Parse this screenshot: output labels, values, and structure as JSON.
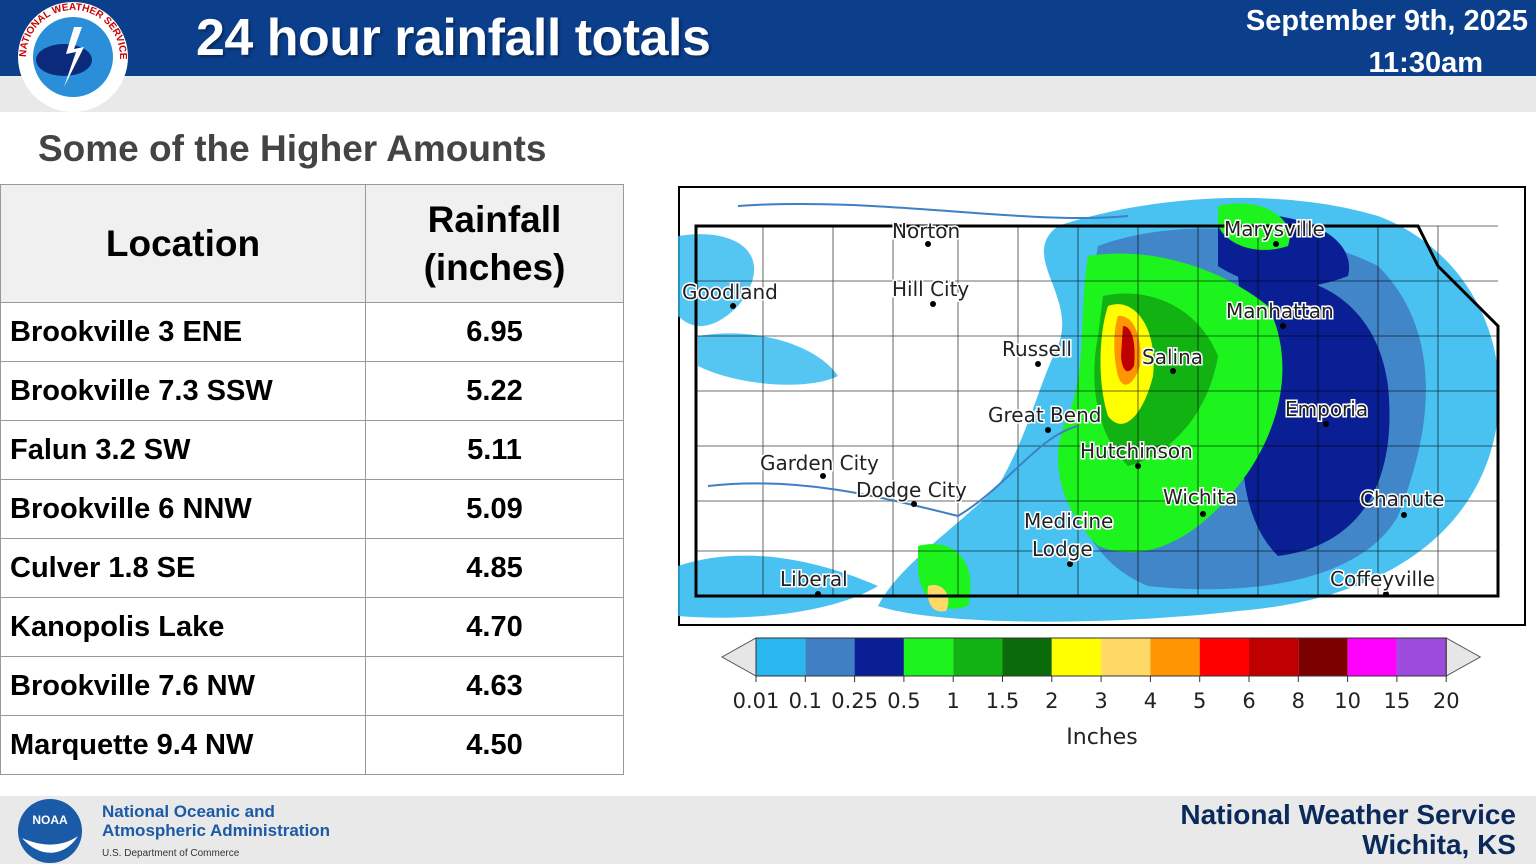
{
  "header": {
    "title": "24 hour rainfall totals",
    "date": "September 9th, 2025",
    "time": "11:30am",
    "logo_ring_text": "NATIONAL WEATHER SERVICE",
    "header_color": "#0b3f8c"
  },
  "subtitle": "Some of the Higher Amounts",
  "table": {
    "headers": [
      "Location",
      "Rainfall",
      "(inches)"
    ],
    "rows": [
      {
        "location": "Brookville 3 ENE",
        "rainfall": "6.95"
      },
      {
        "location": "Brookville 7.3 SSW",
        "rainfall": "5.22"
      },
      {
        "location": "Falun 3.2 SW",
        "rainfall": "5.11"
      },
      {
        "location": "Brookville 6 NNW",
        "rainfall": "5.09"
      },
      {
        "location": "Culver 1.8 SE",
        "rainfall": "4.85"
      },
      {
        "location": "Kanopolis Lake",
        "rainfall": "4.70"
      },
      {
        "location": "Brookville 7.6 NW",
        "rainfall": "4.63"
      },
      {
        "location": "Marquette 9.4 NW",
        "rainfall": "4.50"
      }
    ]
  },
  "map": {
    "cities": [
      "Norton",
      "Marysville",
      "Goodland",
      "Hill City",
      "Manhattan",
      "Russell",
      "Salina",
      "Great Bend",
      "Emporia",
      "Hutchinson",
      "Garden City",
      "Dodge City",
      "Wichita",
      "Chanute",
      "Medicine",
      "Lodge",
      "Liberal",
      "Coffeyville"
    ],
    "colorbar": {
      "ticks": [
        "0.01",
        "0.1",
        "0.25",
        "0.5",
        "1",
        "1.5",
        "2",
        "3",
        "4",
        "5",
        "6",
        "8",
        "10",
        "15",
        "20"
      ],
      "colors": [
        "#2ab7ef",
        "#3f7fc4",
        "#0a1f94",
        "#1df41d",
        "#12b212",
        "#0b6b0b",
        "#ffff00",
        "#ffd966",
        "#ff9500",
        "#ff0000",
        "#c00000",
        "#7c0000",
        "#ff00ff",
        "#9c4bdd"
      ],
      "label": "Inches"
    }
  },
  "footer": {
    "noaa_line1": "National Oceanic and",
    "noaa_line2": "Atmospheric Administration",
    "noaa_dept": "U.S. Department of Commerce",
    "noaa_logo_text": "NOAA",
    "office_line1": "National Weather Service",
    "office_line2": "Wichita, KS"
  }
}
